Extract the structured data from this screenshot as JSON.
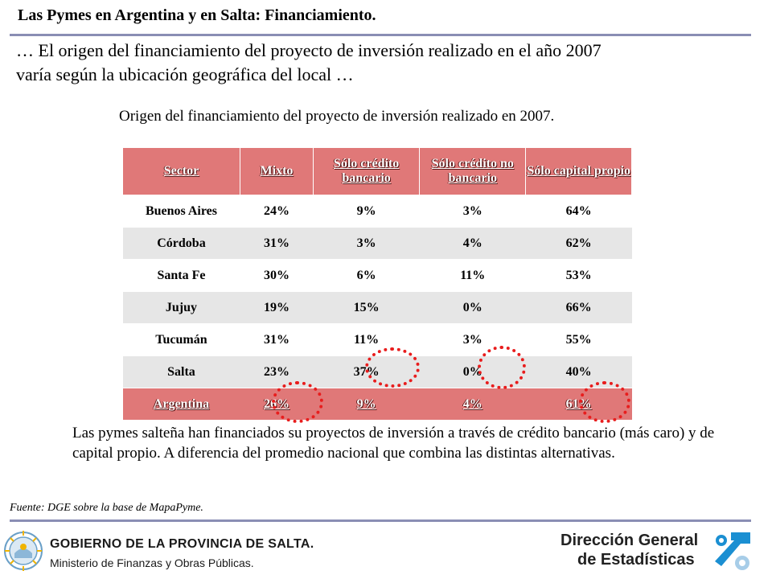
{
  "header": {
    "title": "Las Pymes en Argentina y en Salta: Financiamiento."
  },
  "intro": {
    "line1": "… El origen del financiamiento del proyecto de inversión realizado en el año 2007",
    "line2": "varía según la ubicación geográfica del local …"
  },
  "table": {
    "caption": "Origen del financiamiento del proyecto de inversión realizado en 2007.",
    "headers": [
      "Sector",
      "Mixto",
      "Sólo crédito bancario",
      "Sólo crédito no bancario",
      "Sólo capital propio"
    ],
    "rows": [
      [
        "Buenos Aires",
        "24%",
        "9%",
        "3%",
        "64%"
      ],
      [
        "Córdoba",
        "31%",
        "3%",
        "4%",
        "62%"
      ],
      [
        "Santa Fe",
        "30%",
        "6%",
        "11%",
        "53%"
      ],
      [
        "Jujuy",
        "19%",
        "15%",
        "0%",
        "66%"
      ],
      [
        "Tucumán",
        "31%",
        "11%",
        "3%",
        "55%"
      ],
      [
        "Salta",
        "23%",
        "37%",
        "0%",
        "40%"
      ],
      [
        "Argentina",
        "26%",
        "9%",
        "4%",
        "61%"
      ]
    ],
    "highlight_color": "#e81d1d",
    "header_color": "#e07878"
  },
  "note": {
    "text": "Las pymes salteña han financiados su proyectos de inversión a través de crédito bancario (más caro) y de capital propio. A diferencia del promedio nacional que combina las distintas alternativas."
  },
  "source": {
    "text": "Fuente: DGE  sobre la base de MapaPyme."
  },
  "footer": {
    "gov_line1": "GOBIERNO DE LA PROVINCIA DE SALTA.",
    "gov_line2": "Ministerio de Finanzas y Obras Públicas.",
    "dge_line1": "Dirección General",
    "dge_line2": "de Estadísticas",
    "seal_icon": "salta-seal-icon",
    "dge_icon": "dge-logo-icon"
  }
}
